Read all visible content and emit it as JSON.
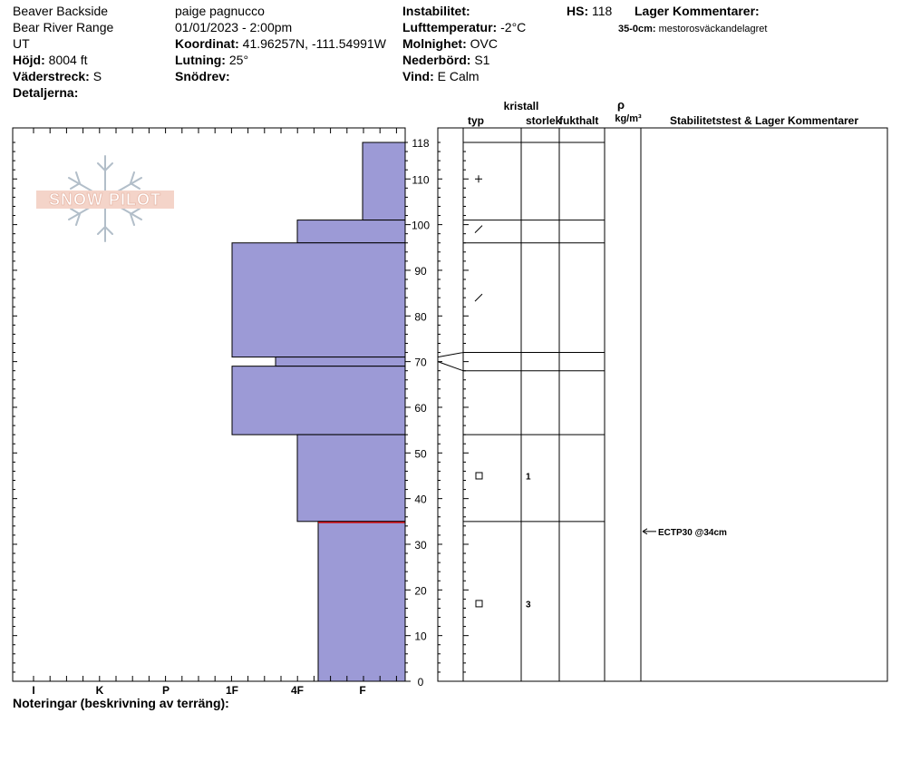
{
  "header": {
    "location": "Beaver Backside",
    "range": "Bear River Range",
    "state": "UT",
    "elevation_label": "Höjd:",
    "elevation_value": "8004 ft",
    "aspect_label": "Väderstreck:",
    "aspect_value": "S",
    "details_label": "Detaljerna:",
    "observer": "paige pagnucco",
    "datetime": "01/01/2023 - 2:00pm",
    "coord_label": "Koordinat:",
    "coord_value": "41.96257N, -111.54991W",
    "slope_label": "Lutning:",
    "slope_value": "25°",
    "drift_label": "Snödrev:",
    "drift_value": "",
    "instability_label": "Instabilitet:",
    "instability_value": "",
    "airtemp_label": "Lufttemperatur:",
    "airtemp_value": "-2°C",
    "sky_label": "Molnighet:",
    "sky_value": "OVC",
    "precip_label": "Nederbörd:",
    "precip_value": "S1",
    "wind_label": "Vind:",
    "wind_value": "E Calm",
    "hs_label": "HS:",
    "hs_value": "118",
    "layer_comments_label": "Lager Kommentarer:",
    "layer_comment_range": "35-0cm:",
    "layer_comment_text": "mestorosväckandelagret"
  },
  "logo_text": "SNOW PILOT",
  "columns": {
    "crystal": "kristall",
    "type": "typ",
    "size": "storlek",
    "moisture": "fukthalt",
    "rho": "ρ",
    "density_unit": "kg/m³",
    "stability": "Stabilitetstest & Lager Kommentarer"
  },
  "footer": {
    "notes_label": "Noteringar (beskrivning av terräng):"
  },
  "colors": {
    "layer_fill": "#9c9ad6",
    "weak_layer_line": "#cc0000"
  },
  "chart_data": {
    "type": "bar",
    "orientation": "horizontal-profile",
    "y_axis_ticks": [
      0,
      10,
      20,
      30,
      40,
      50,
      60,
      70,
      80,
      90,
      100,
      110,
      118
    ],
    "ylim": [
      0,
      118
    ],
    "hardness_categories": [
      "I",
      "K",
      "P",
      "1F",
      "4F",
      "F"
    ],
    "layers": [
      {
        "top": 118,
        "bottom": 101,
        "hardness": "F"
      },
      {
        "top": 101,
        "bottom": 96,
        "hardness": "4F"
      },
      {
        "top": 96,
        "bottom": 71,
        "hardness": "1F"
      },
      {
        "top": 71,
        "bottom": 69,
        "hardness": "4F+"
      },
      {
        "top": 69,
        "bottom": 54,
        "hardness": "1F"
      },
      {
        "top": 54,
        "bottom": 35,
        "hardness": "4F"
      },
      {
        "top": 35,
        "bottom": 0,
        "hardness": "4F-F"
      }
    ],
    "grain_symbols": [
      {
        "depth": 110,
        "symbol": "+"
      },
      {
        "depth": 99,
        "symbol": "/"
      },
      {
        "depth": 84,
        "symbol": "/"
      },
      {
        "depth": 45,
        "symbol": "□",
        "size": "1"
      },
      {
        "depth": 17,
        "symbol": "□",
        "size": "3"
      }
    ],
    "stability_tests": [
      {
        "depth": 34,
        "label": "ECTP30 @34cm"
      }
    ]
  }
}
